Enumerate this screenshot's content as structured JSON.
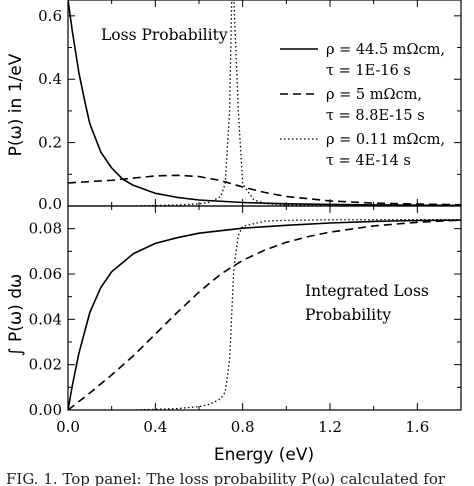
{
  "chart_data": [
    {
      "type": "line",
      "panel": "top",
      "ylabel": "P(ω) in 1/eV",
      "xlabel": "",
      "xlim": [
        0.0,
        1.8
      ],
      "ylim": [
        0.0,
        0.65
      ],
      "x_ticks": [
        "0.0",
        "0.4",
        "0.8",
        "1.2",
        "1.6"
      ],
      "y_ticks": [
        "0.0",
        "0.2",
        "0.4",
        "0.6"
      ],
      "y_tick_values": [
        0.0,
        0.2,
        0.4,
        0.6
      ],
      "annotation": "Loss Probability",
      "legend_position": "top-right",
      "series": [
        {
          "name": "ρ = 44.5 mΩcm,",
          "name_line2": "τ = 1E-16 s",
          "style": "solid",
          "x": [
            0.0,
            0.02,
            0.05,
            0.08,
            0.1,
            0.15,
            0.2,
            0.25,
            0.3,
            0.4,
            0.5,
            0.6,
            0.8,
            1.0,
            1.2,
            1.4,
            1.6,
            1.8
          ],
          "y": [
            0.65,
            0.55,
            0.42,
            0.32,
            0.26,
            0.17,
            0.12,
            0.085,
            0.065,
            0.04,
            0.027,
            0.019,
            0.011,
            0.007,
            0.005,
            0.0035,
            0.0025,
            0.002
          ]
        },
        {
          "name": "ρ = 5 mΩcm,",
          "name_line2": "τ = 8.8E-15 s",
          "style": "dashed",
          "x": [
            0.0,
            0.1,
            0.2,
            0.3,
            0.4,
            0.5,
            0.6,
            0.7,
            0.8,
            0.9,
            1.0,
            1.2,
            1.4,
            1.6,
            1.8
          ],
          "y": [
            0.073,
            0.077,
            0.081,
            0.088,
            0.095,
            0.097,
            0.093,
            0.08,
            0.06,
            0.043,
            0.03,
            0.016,
            0.009,
            0.006,
            0.004
          ]
        },
        {
          "name": "ρ = 0.11 mΩcm,",
          "name_line2": "τ = 4E-14 s",
          "style": "dotted",
          "x": [
            0.0,
            0.3,
            0.5,
            0.6,
            0.65,
            0.7,
            0.72,
            0.74,
            0.75,
            0.76,
            0.78,
            0.8,
            0.85,
            0.9,
            1.0,
            1.2,
            1.5,
            1.8
          ],
          "y": [
            0.0,
            0.0,
            0.003,
            0.007,
            0.012,
            0.03,
            0.07,
            0.3,
            0.65,
            0.65,
            0.3,
            0.07,
            0.02,
            0.008,
            0.003,
            0.0,
            0.0,
            0.0
          ]
        }
      ]
    },
    {
      "type": "line",
      "panel": "bottom",
      "ylabel": "∫ P(ω) dω",
      "xlabel": "Energy (eV)",
      "xlim": [
        0.0,
        1.8
      ],
      "ylim": [
        0.0,
        0.09
      ],
      "x_ticks": [
        "0.0",
        "0.4",
        "0.8",
        "1.2",
        "1.6"
      ],
      "y_ticks": [
        "0.00",
        "0.02",
        "0.04",
        "0.06",
        "0.08"
      ],
      "y_tick_values": [
        0.0,
        0.02,
        0.04,
        0.06,
        0.08
      ],
      "annotation_line1": "Integrated Loss",
      "annotation_line2": "Probability",
      "series": [
        {
          "style": "solid",
          "x": [
            0.0,
            0.02,
            0.05,
            0.1,
            0.15,
            0.2,
            0.3,
            0.4,
            0.5,
            0.6,
            0.8,
            1.0,
            1.2,
            1.4,
            1.6,
            1.8
          ],
          "y": [
            0.0,
            0.011,
            0.025,
            0.043,
            0.054,
            0.061,
            0.069,
            0.0735,
            0.076,
            0.078,
            0.0802,
            0.0815,
            0.0825,
            0.0832,
            0.0836,
            0.0838
          ]
        },
        {
          "style": "dashed",
          "x": [
            0.0,
            0.1,
            0.2,
            0.3,
            0.4,
            0.5,
            0.6,
            0.7,
            0.8,
            0.9,
            1.0,
            1.1,
            1.2,
            1.4,
            1.6,
            1.8
          ],
          "y": [
            0.0,
            0.0075,
            0.0155,
            0.024,
            0.0335,
            0.043,
            0.052,
            0.06,
            0.066,
            0.0705,
            0.074,
            0.0765,
            0.0785,
            0.0812,
            0.0828,
            0.0838
          ]
        },
        {
          "style": "dotted",
          "x": [
            0.0,
            0.3,
            0.5,
            0.6,
            0.65,
            0.7,
            0.72,
            0.74,
            0.75,
            0.76,
            0.78,
            0.8,
            0.9,
            1.0,
            1.2,
            1.5,
            1.8
          ],
          "y": [
            0.0,
            0.0,
            0.0006,
            0.0015,
            0.0025,
            0.005,
            0.008,
            0.022,
            0.042,
            0.063,
            0.077,
            0.081,
            0.0833,
            0.0837,
            0.0839,
            0.084,
            0.084
          ]
        }
      ]
    }
  ],
  "caption": "FIG. 1. Top panel: The loss probability P(ω) calculated for"
}
